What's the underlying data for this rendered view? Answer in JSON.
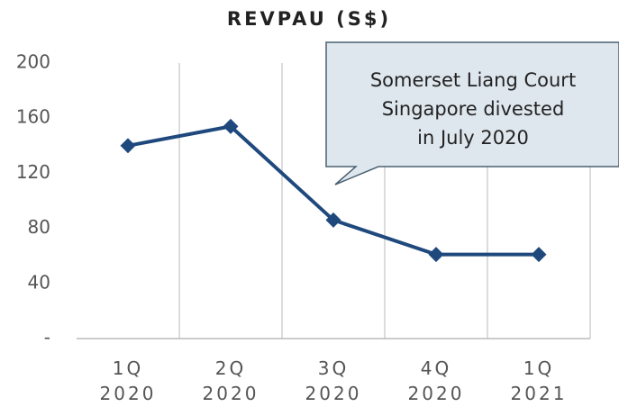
{
  "chart_data": {
    "type": "line",
    "title": "REVPAU (S$)",
    "categories": [
      "1Q 2020",
      "2Q 2020",
      "3Q 2020",
      "4Q 2020",
      "1Q 2021"
    ],
    "series": [
      {
        "name": "REVPAU",
        "color": "#1f497d",
        "values": [
          140,
          154,
          86,
          61,
          61
        ]
      }
    ],
    "ylim": [
      0,
      200
    ],
    "yticks": [
      {
        "value": 0,
        "label": "-"
      },
      40,
      80,
      120,
      160,
      200
    ],
    "grid": true,
    "annotation": [
      "Somerset Liang Court",
      "Singapore divested",
      "in July 2020"
    ]
  }
}
